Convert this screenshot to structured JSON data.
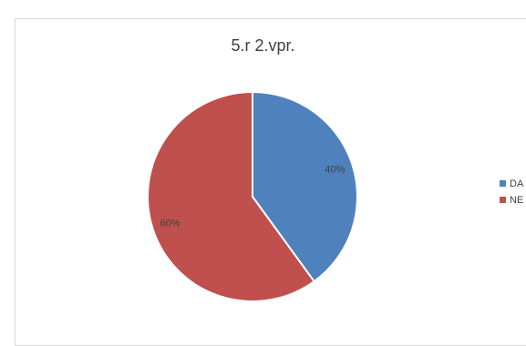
{
  "chart_data": {
    "type": "pie",
    "title": "5.r 2.vpr.",
    "categories": [
      "DA",
      "NE"
    ],
    "values": [
      40,
      60
    ],
    "data_labels": [
      "40%",
      "60%"
    ],
    "colors": [
      "#4f81bd",
      "#c0504d"
    ],
    "legend_placement": "right"
  }
}
